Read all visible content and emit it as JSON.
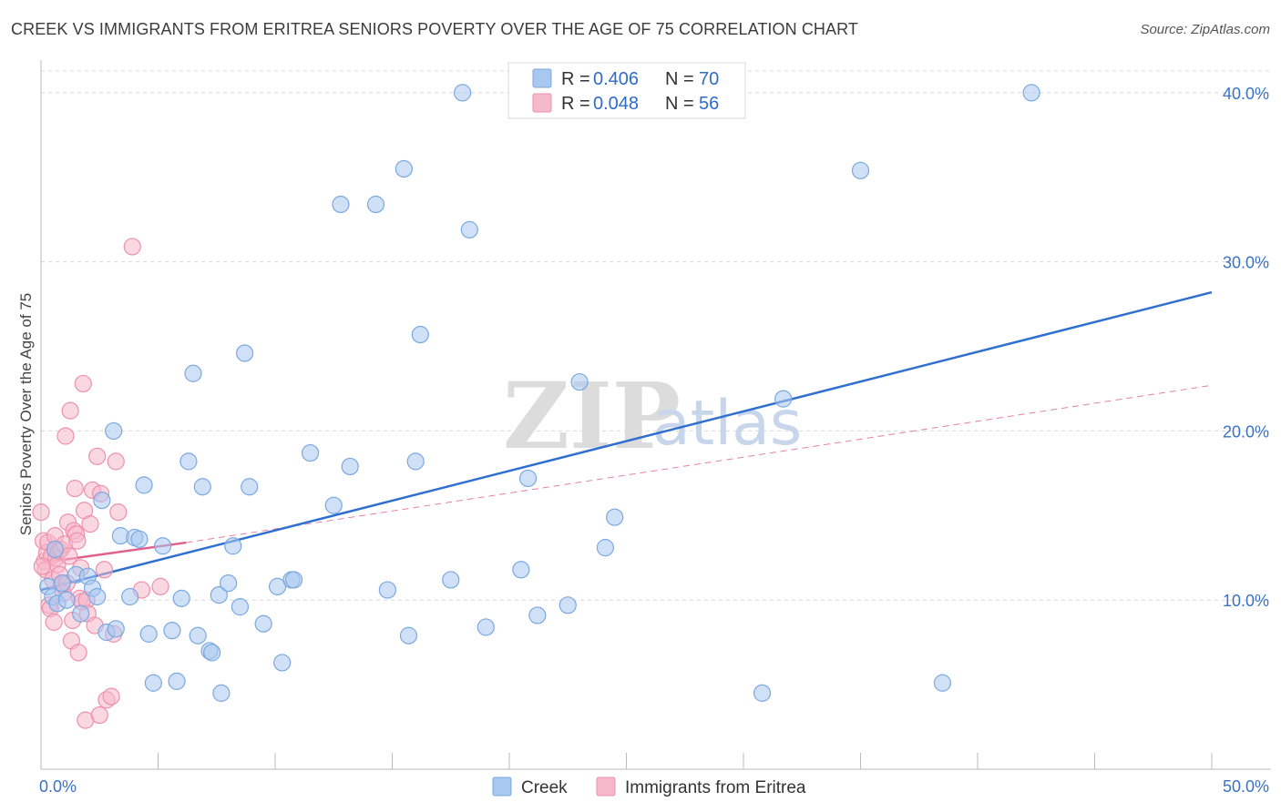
{
  "title": "CREEK VS IMMIGRANTS FROM ERITREA SENIORS POVERTY OVER THE AGE OF 75 CORRELATION CHART",
  "source": "Source: ZipAtlas.com",
  "watermark": {
    "zip": "ZIP",
    "atlas": "atlas"
  },
  "legend": {
    "r_label": "R = ",
    "n_label": "N = ",
    "creek": {
      "r": "0.406",
      "n": "70"
    },
    "eritrea": {
      "r": "0.048",
      "n": "56"
    }
  },
  "bottom_legend": {
    "creek": "Creek",
    "eritrea": "Immigrants from Eritrea"
  },
  "colors": {
    "creek_fill": "#a9c8f0",
    "creek_stroke": "#7aa8e0",
    "creek_line": "#2f6fd0",
    "eritrea_fill": "#f6b8cb",
    "eritrea_stroke": "#ee8fae",
    "eritrea_line": "#e0608c",
    "grid": "#d8d8d8",
    "tick": "#3a72c4"
  },
  "chart_data": {
    "type": "scatter",
    "title": "CREEK VS IMMIGRANTS FROM ERITREA SENIORS POVERTY OVER THE AGE OF 75 CORRELATION CHART",
    "xlabel": "",
    "ylabel": "Seniors Poverty Over the Age of 75",
    "xlim": [
      0,
      50
    ],
    "ylim": [
      0,
      41.5
    ],
    "x_tick_labels": [
      "0.0%",
      "50.0%"
    ],
    "y_ticks": [
      10,
      20,
      30,
      40
    ],
    "y_tick_labels": [
      "10.0%",
      "20.0%",
      "30.0%",
      "40.0%"
    ],
    "series": [
      {
        "name": "Creek",
        "trend": {
          "x": [
            0,
            50
          ],
          "y": [
            10.6,
            28.2
          ],
          "style": "solid"
        },
        "points": [
          [
            0.3,
            10.8
          ],
          [
            0.5,
            10.2
          ],
          [
            0.7,
            9.8
          ],
          [
            0.9,
            11.0
          ],
          [
            1.1,
            10.0
          ],
          [
            1.5,
            11.5
          ],
          [
            1.7,
            9.2
          ],
          [
            2.0,
            11.4
          ],
          [
            2.2,
            10.7
          ],
          [
            2.4,
            10.2
          ],
          [
            2.6,
            15.9
          ],
          [
            2.8,
            8.1
          ],
          [
            3.1,
            20.0
          ],
          [
            3.2,
            8.3
          ],
          [
            3.4,
            13.8
          ],
          [
            3.8,
            10.2
          ],
          [
            4.0,
            13.7
          ],
          [
            4.2,
            13.6
          ],
          [
            4.4,
            16.8
          ],
          [
            4.6,
            8.0
          ],
          [
            4.8,
            5.1
          ],
          [
            5.2,
            13.2
          ],
          [
            5.6,
            8.2
          ],
          [
            5.8,
            5.2
          ],
          [
            6.0,
            10.1
          ],
          [
            6.3,
            18.2
          ],
          [
            6.5,
            23.4
          ],
          [
            6.7,
            7.9
          ],
          [
            6.9,
            16.7
          ],
          [
            7.2,
            7.0
          ],
          [
            7.3,
            6.9
          ],
          [
            7.6,
            10.3
          ],
          [
            7.7,
            4.5
          ],
          [
            8.0,
            11.0
          ],
          [
            8.2,
            13.2
          ],
          [
            8.5,
            9.6
          ],
          [
            8.7,
            24.6
          ],
          [
            8.9,
            16.7
          ],
          [
            9.5,
            8.6
          ],
          [
            10.1,
            10.8
          ],
          [
            10.3,
            6.3
          ],
          [
            10.7,
            11.2
          ],
          [
            10.8,
            11.2
          ],
          [
            11.5,
            18.7
          ],
          [
            12.5,
            15.6
          ],
          [
            12.8,
            33.4
          ],
          [
            13.2,
            17.9
          ],
          [
            14.3,
            33.4
          ],
          [
            14.8,
            10.6
          ],
          [
            15.5,
            35.5
          ],
          [
            15.7,
            7.9
          ],
          [
            16.0,
            18.2
          ],
          [
            16.2,
            25.7
          ],
          [
            17.5,
            11.2
          ],
          [
            18.0,
            40.0
          ],
          [
            18.3,
            31.9
          ],
          [
            19.0,
            8.4
          ],
          [
            20.5,
            11.8
          ],
          [
            20.8,
            17.2
          ],
          [
            21.2,
            9.1
          ],
          [
            22.5,
            9.7
          ],
          [
            23.0,
            22.9
          ],
          [
            24.1,
            13.1
          ],
          [
            24.5,
            14.9
          ],
          [
            30.8,
            4.5
          ],
          [
            31.7,
            21.9
          ],
          [
            35.0,
            35.4
          ],
          [
            38.5,
            5.1
          ],
          [
            42.3,
            40.0
          ],
          [
            0.6,
            13.0
          ]
        ]
      },
      {
        "name": "Immigrants from Eritrea",
        "trend": {
          "x": [
            0,
            6.2
          ],
          "y": [
            12.2,
            13.4
          ],
          "style": "solid",
          "extension": {
            "x": [
              6.2,
              50
            ],
            "y": [
              13.4,
              22.7
            ],
            "style": "dashed"
          }
        },
        "points": [
          [
            0.0,
            15.2
          ],
          [
            0.1,
            13.5
          ],
          [
            0.15,
            12.3
          ],
          [
            0.2,
            11.8
          ],
          [
            0.25,
            12.8
          ],
          [
            0.3,
            13.4
          ],
          [
            0.35,
            9.7
          ],
          [
            0.4,
            9.5
          ],
          [
            0.45,
            12.6
          ],
          [
            0.5,
            11.2
          ],
          [
            0.55,
            8.7
          ],
          [
            0.6,
            13.8
          ],
          [
            0.65,
            12.5
          ],
          [
            0.7,
            12.1
          ],
          [
            0.75,
            12.9
          ],
          [
            0.8,
            11.5
          ],
          [
            0.85,
            13.0
          ],
          [
            0.9,
            10.9
          ],
          [
            0.95,
            10.4
          ],
          [
            1.0,
            13.3
          ],
          [
            1.05,
            19.7
          ],
          [
            1.1,
            11.0
          ],
          [
            1.15,
            14.6
          ],
          [
            1.2,
            12.6
          ],
          [
            1.25,
            21.2
          ],
          [
            1.3,
            7.6
          ],
          [
            1.35,
            8.8
          ],
          [
            1.4,
            14.1
          ],
          [
            1.45,
            16.6
          ],
          [
            1.5,
            13.9
          ],
          [
            1.55,
            13.5
          ],
          [
            1.6,
            6.9
          ],
          [
            1.65,
            10.1
          ],
          [
            1.7,
            11.9
          ],
          [
            1.75,
            9.9
          ],
          [
            1.8,
            22.8
          ],
          [
            1.85,
            15.3
          ],
          [
            1.9,
            2.9
          ],
          [
            1.95,
            10.0
          ],
          [
            2.0,
            9.2
          ],
          [
            2.1,
            14.5
          ],
          [
            2.2,
            16.5
          ],
          [
            2.3,
            8.5
          ],
          [
            2.4,
            18.5
          ],
          [
            2.5,
            3.2
          ],
          [
            2.55,
            16.3
          ],
          [
            2.7,
            11.8
          ],
          [
            2.8,
            4.1
          ],
          [
            3.0,
            4.3
          ],
          [
            3.1,
            8.0
          ],
          [
            3.2,
            18.2
          ],
          [
            3.3,
            15.2
          ],
          [
            4.3,
            10.6
          ],
          [
            5.1,
            10.8
          ],
          [
            3.9,
            30.9
          ],
          [
            0.05,
            12.0
          ]
        ]
      }
    ]
  }
}
